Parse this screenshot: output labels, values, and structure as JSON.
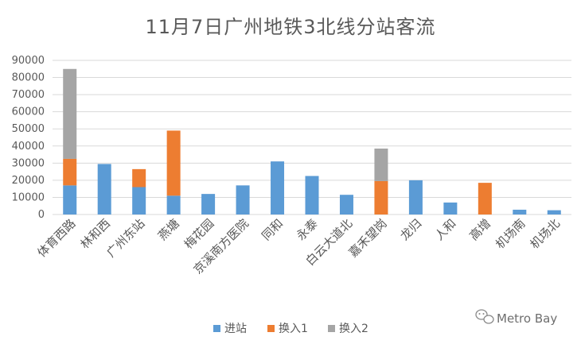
{
  "chart_data": {
    "type": "bar",
    "stacked": true,
    "title": "11月7日广州地铁3北线分站客流",
    "categories": [
      "体育西路",
      "林和西",
      "广州东站",
      "燕塘",
      "梅花园",
      "京溪南方医院",
      "同和",
      "永泰",
      "白云大道北",
      "嘉禾望岗",
      "龙归",
      "人和",
      "高增",
      "机场南",
      "机场北"
    ],
    "series": [
      {
        "name": "进站",
        "color": "#5b9bd5",
        "values": [
          17000,
          29500,
          16000,
          11000,
          12000,
          17000,
          31000,
          22500,
          11500,
          0,
          20000,
          7000,
          0,
          2800,
          2500
        ]
      },
      {
        "name": "换入1",
        "color": "#ed7d31",
        "values": [
          15500,
          0,
          10500,
          38000,
          0,
          0,
          0,
          0,
          0,
          19500,
          0,
          0,
          18500,
          0,
          0
        ]
      },
      {
        "name": "换入2",
        "color": "#a5a5a5",
        "values": [
          52500,
          0,
          0,
          0,
          0,
          0,
          0,
          0,
          0,
          19000,
          0,
          0,
          0,
          0,
          0
        ]
      }
    ],
    "ylim": [
      0,
      90000
    ],
    "yticks": [
      "0",
      "10000",
      "20000",
      "30000",
      "40000",
      "50000",
      "60000",
      "70000",
      "80000",
      "90000"
    ],
    "grid": true,
    "legend_position": "bottom"
  },
  "watermark": {
    "text": "Metro Bay",
    "icon": "wechat-icon"
  }
}
